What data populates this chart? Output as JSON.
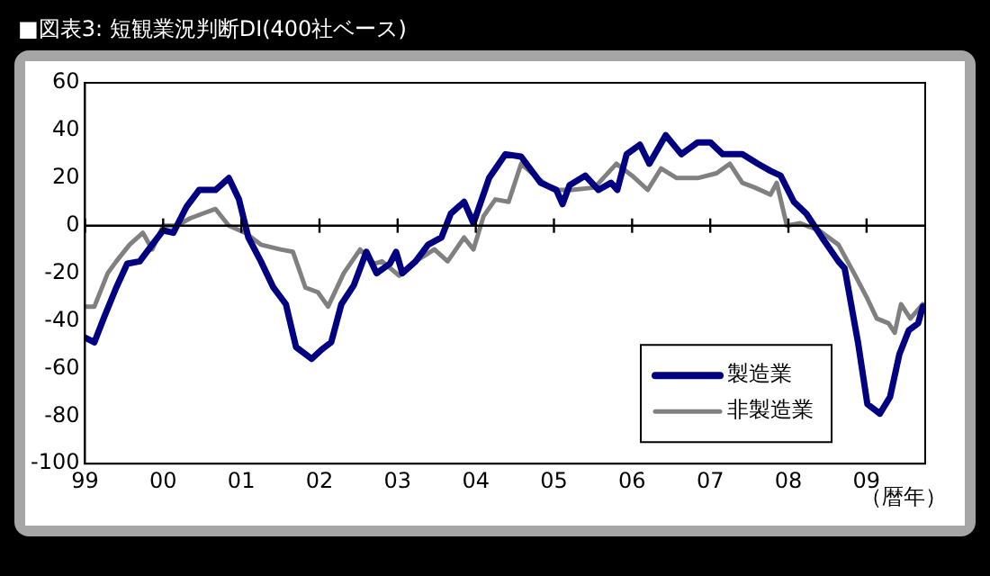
{
  "chart_data": {
    "type": "line",
    "title": "■図表3: 短観業況判断DI(400社ベース)",
    "xlabel": "（暦年）",
    "xlim": [
      1999,
      2009.75
    ],
    "xticks": [
      {
        "value": 1999,
        "label": "99"
      },
      {
        "value": 2000,
        "label": "00"
      },
      {
        "value": 2001,
        "label": "01"
      },
      {
        "value": 2002,
        "label": "02"
      },
      {
        "value": 2003,
        "label": "03"
      },
      {
        "value": 2004,
        "label": "04"
      },
      {
        "value": 2005,
        "label": "05"
      },
      {
        "value": 2006,
        "label": "06"
      },
      {
        "value": 2007,
        "label": "07"
      },
      {
        "value": 2008,
        "label": "08"
      },
      {
        "value": 2009,
        "label": "09"
      }
    ],
    "ylim": [
      -100,
      60
    ],
    "yticks": [
      -100,
      -80,
      -60,
      -40,
      -20,
      0,
      20,
      40,
      60
    ],
    "grid": false,
    "legend": "bottom right",
    "marker": "none",
    "line_style": "solid",
    "ref_lines": [
      {
        "axis": "y",
        "value": 0,
        "color": "#000000"
      }
    ],
    "series": [
      {
        "name": "製造業",
        "color": "#000080",
        "x": [
          1999.0,
          1999.12,
          1999.25,
          1999.4,
          1999.54,
          1999.7,
          1999.86,
          2000.0,
          2000.13,
          2000.3,
          2000.46,
          2000.67,
          2000.84,
          2000.97,
          2001.09,
          2001.25,
          2001.41,
          2001.57,
          2001.7,
          2001.9,
          2002.03,
          2002.15,
          2002.28,
          2002.44,
          2002.6,
          2002.73,
          2002.9,
          2002.98,
          2003.06,
          2003.23,
          2003.39,
          2003.56,
          2003.68,
          2003.85,
          2003.97,
          2004.17,
          2004.38,
          2004.58,
          2004.83,
          2005.03,
          2005.11,
          2005.2,
          2005.4,
          2005.57,
          2005.73,
          2005.81,
          2005.93,
          2006.1,
          2006.22,
          2006.43,
          2006.63,
          2006.84,
          2007.0,
          2007.16,
          2007.41,
          2007.61,
          2007.77,
          2007.9,
          2008.07,
          2008.23,
          2008.43,
          2008.64,
          2008.72,
          2008.89,
          2009.01,
          2009.17,
          2009.3,
          2009.42,
          2009.54,
          2009.66,
          2009.72
        ],
        "values": [
          -47,
          -49,
          -38,
          -26,
          -16,
          -15,
          -8,
          -2,
          -3,
          8,
          15,
          15,
          20,
          11,
          -5,
          -15,
          -26,
          -33,
          -51,
          -56,
          -52,
          -49,
          -33,
          -25,
          -11,
          -20,
          -16,
          -11,
          -20,
          -15,
          -8,
          -5,
          5,
          10,
          1,
          20,
          30,
          29,
          18,
          15,
          9,
          17,
          21,
          15,
          18,
          15,
          30,
          34,
          26,
          38,
          30,
          35,
          35,
          30,
          30,
          26,
          23,
          21,
          10,
          5,
          -5,
          -15,
          -18,
          -49,
          -75,
          -79,
          -72,
          -54,
          -44,
          -41,
          -34
        ]
      },
      {
        "name": "非製造業",
        "color": "#808080",
        "x": [
          1999.0,
          1999.12,
          1999.29,
          1999.4,
          1999.57,
          1999.74,
          1999.86,
          2000.0,
          2000.18,
          2000.34,
          2000.5,
          2000.67,
          2000.84,
          2001.05,
          2001.25,
          2001.5,
          2001.66,
          2001.82,
          2001.98,
          2002.11,
          2002.31,
          2002.52,
          2002.7,
          2002.8,
          2003.02,
          2003.23,
          2003.47,
          2003.64,
          2003.85,
          2003.97,
          2004.1,
          2004.25,
          2004.42,
          2004.58,
          2004.79,
          2005.0,
          2005.23,
          2005.52,
          2005.8,
          2006.0,
          2006.2,
          2006.37,
          2006.57,
          2006.84,
          2007.08,
          2007.25,
          2007.41,
          2007.57,
          2007.77,
          2007.85,
          2007.98,
          2008.15,
          2008.39,
          2008.64,
          2008.84,
          2009.0,
          2009.13,
          2009.28,
          2009.36,
          2009.44,
          2009.56,
          2009.72
        ],
        "values": [
          -34,
          -34,
          -20,
          -15,
          -8,
          -3,
          -10,
          0,
          0,
          3,
          5,
          7,
          0,
          -3,
          -8,
          -10,
          -11,
          -26,
          -28,
          -34,
          -20,
          -10,
          -16,
          -15,
          -21,
          -15,
          -10,
          -15,
          -5,
          -10,
          4,
          11,
          10,
          26,
          20,
          15,
          15,
          16,
          26,
          21,
          15,
          24,
          20,
          20,
          22,
          26,
          18,
          16,
          13,
          18,
          0,
          1,
          -2,
          -8,
          -20,
          -30,
          -39,
          -41,
          -45,
          -33,
          -39,
          -33
        ]
      }
    ]
  }
}
